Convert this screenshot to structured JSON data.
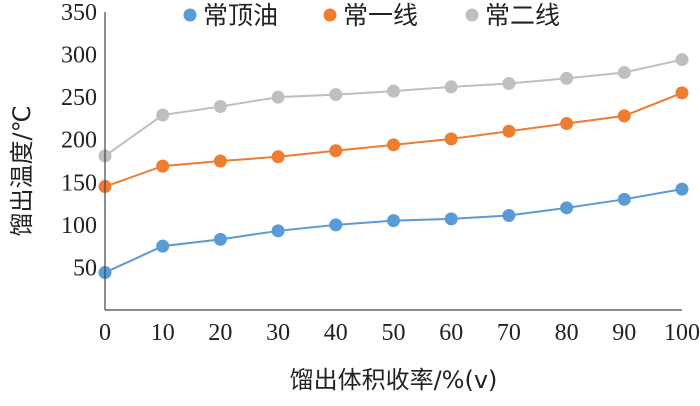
{
  "chart_data": {
    "type": "line",
    "x": [
      0,
      10,
      20,
      30,
      40,
      50,
      60,
      70,
      80,
      90,
      100
    ],
    "xlim": [
      0,
      100
    ],
    "ylim": [
      0,
      350
    ],
    "xticks": [
      "0",
      "10",
      "20",
      "30",
      "40",
      "50",
      "60",
      "70",
      "80",
      "90",
      "100"
    ],
    "yticks": [
      "50",
      "100",
      "150",
      "200",
      "250",
      "300",
      "350"
    ],
    "xlabel": "馏出体积收率/%(v)",
    "ylabel": "馏出温度/℃",
    "grid": false,
    "legend_position": "top",
    "series": [
      {
        "name": "常顶油",
        "color": "#5b9bd5",
        "values": [
          44,
          75,
          83,
          93,
          100,
          105,
          107,
          111,
          120,
          130,
          142
        ]
      },
      {
        "name": "常一线",
        "color": "#ed7d31",
        "values": [
          145,
          169,
          175,
          180,
          187,
          194,
          201,
          210,
          219,
          228,
          255
        ]
      },
      {
        "name": "常二线",
        "color": "#bfbfbf",
        "values": [
          181,
          229,
          239,
          250,
          253,
          257,
          262,
          266,
          272,
          279,
          294
        ]
      }
    ]
  }
}
